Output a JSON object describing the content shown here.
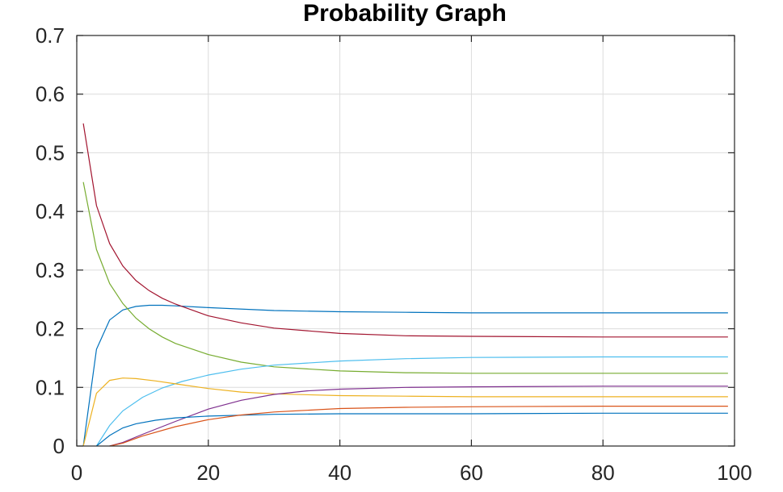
{
  "chart_data": {
    "type": "line",
    "title": "Probability Graph",
    "xlabel": "",
    "ylabel": "",
    "xlim": [
      0,
      100
    ],
    "ylim": [
      0,
      0.7
    ],
    "xticks": [
      0,
      20,
      40,
      60,
      80,
      100
    ],
    "yticks": [
      0,
      0.1,
      0.2,
      0.3,
      0.4,
      0.5,
      0.6,
      0.7
    ],
    "xtick_labels": [
      "0",
      "20",
      "40",
      "60",
      "80",
      "100"
    ],
    "ytick_labels": [
      "0",
      "0.1",
      "0.2",
      "0.3",
      "0.4",
      "0.5",
      "0.6",
      "0.7"
    ],
    "grid": true,
    "series": [
      {
        "color": "#0072bd",
        "x": [
          1,
          3,
          5,
          7,
          9,
          11,
          13,
          15,
          20,
          30,
          40,
          50,
          60,
          80,
          99
        ],
        "y": [
          0,
          0.165,
          0.215,
          0.232,
          0.238,
          0.24,
          0.24,
          0.239,
          0.236,
          0.231,
          0.229,
          0.228,
          0.227,
          0.227,
          0.227
        ]
      },
      {
        "color": "#a2142f",
        "x": [
          1,
          3,
          5,
          7,
          9,
          11,
          13,
          15,
          20,
          25,
          30,
          40,
          50,
          60,
          80,
          99
        ],
        "y": [
          0.55,
          0.41,
          0.345,
          0.307,
          0.282,
          0.265,
          0.252,
          0.242,
          0.222,
          0.21,
          0.201,
          0.192,
          0.188,
          0.187,
          0.186,
          0.186
        ]
      },
      {
        "color": "#77ac30",
        "x": [
          1,
          3,
          5,
          7,
          9,
          11,
          13,
          15,
          20,
          25,
          30,
          40,
          50,
          60,
          80,
          99
        ],
        "y": [
          0.45,
          0.335,
          0.277,
          0.243,
          0.218,
          0.2,
          0.186,
          0.175,
          0.156,
          0.143,
          0.135,
          0.128,
          0.125,
          0.124,
          0.124,
          0.124
        ]
      },
      {
        "color": "#4dbeee",
        "x": [
          3,
          5,
          7,
          10,
          13,
          16,
          20,
          25,
          30,
          40,
          50,
          60,
          80,
          99
        ],
        "y": [
          0,
          0.035,
          0.06,
          0.083,
          0.099,
          0.11,
          0.121,
          0.131,
          0.138,
          0.145,
          0.149,
          0.151,
          0.152,
          0.152
        ]
      },
      {
        "color": "#edb120",
        "x": [
          1,
          3,
          5,
          7,
          9,
          12,
          15,
          20,
          25,
          30,
          40,
          50,
          60,
          80,
          99
        ],
        "y": [
          0,
          0.09,
          0.112,
          0.116,
          0.115,
          0.111,
          0.106,
          0.098,
          0.092,
          0.089,
          0.086,
          0.085,
          0.084,
          0.084,
          0.084
        ]
      },
      {
        "color": "#7e2f8e",
        "x": [
          5,
          7,
          10,
          15,
          20,
          25,
          30,
          35,
          40,
          50,
          60,
          80,
          99
        ],
        "y": [
          0,
          0.006,
          0.02,
          0.042,
          0.063,
          0.078,
          0.088,
          0.094,
          0.097,
          0.1,
          0.101,
          0.102,
          0.102
        ]
      },
      {
        "color": "#0072bd",
        "x": [
          3,
          5,
          7,
          9,
          12,
          15,
          20,
          30,
          40,
          60,
          80,
          99
        ],
        "y": [
          0,
          0.018,
          0.031,
          0.038,
          0.044,
          0.048,
          0.051,
          0.054,
          0.055,
          0.055,
          0.056,
          0.056
        ]
      },
      {
        "color": "#d95319",
        "x": [
          5,
          7,
          10,
          15,
          20,
          25,
          30,
          40,
          50,
          60,
          80,
          99
        ],
        "y": [
          0,
          0.005,
          0.017,
          0.033,
          0.045,
          0.053,
          0.058,
          0.064,
          0.066,
          0.067,
          0.068,
          0.068
        ]
      }
    ]
  }
}
